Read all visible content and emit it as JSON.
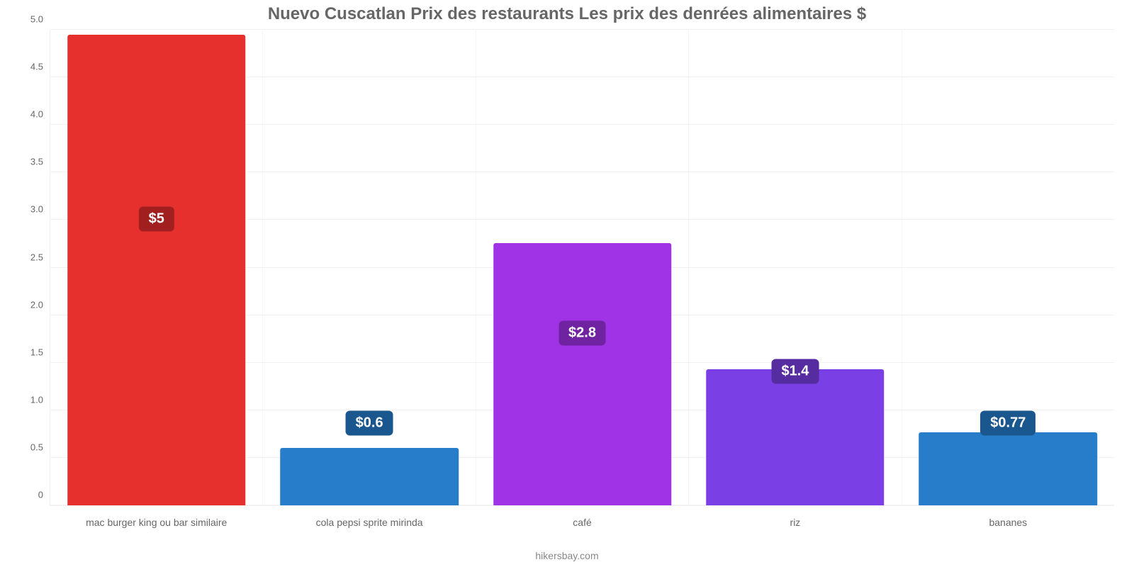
{
  "chart": {
    "type": "bar",
    "title": "Nuevo Cuscatlan Prix des restaurants Les prix des denrées alimentaires $",
    "title_fontsize": 24,
    "title_color": "#666666",
    "background_color": "#ffffff",
    "grid_color": "rgba(0,0,0,0.05)",
    "plot_border_color": "rgba(0,0,0,0.06)",
    "credit": "hikersbay.com",
    "credit_color": "#888888",
    "credit_fontsize": 14,
    "ymin": 0,
    "ymax": 5.0,
    "ytick_step": 0.5,
    "ytick_fontsize": 13,
    "ytick_color": "#666666",
    "xlabel_fontsize": 14,
    "xlabel_color": "#666666",
    "bar_width_pct": 84,
    "label_fontsize": 20,
    "label_color": "#ffffff",
    "series": [
      {
        "category": "mac burger king ou bar similaire",
        "value": 4.95,
        "display_label": "$5",
        "bar_color": "#e6302d",
        "badge_color": "#a1201f",
        "label_y": 2.75
      },
      {
        "category": "cola pepsi sprite mirinda",
        "value": 0.6,
        "display_label": "$0.6",
        "bar_color": "#287dcb",
        "badge_color": "#1a578e",
        "label_y": 0.6
      },
      {
        "category": "café",
        "value": 2.76,
        "display_label": "$2.8",
        "bar_color": "#a133e6",
        "badge_color": "#7023a1",
        "label_y": 1.55
      },
      {
        "category": "riz",
        "value": 1.43,
        "display_label": "$1.4",
        "bar_color": "#7b3fe6",
        "badge_color": "#562ca1",
        "label_y": 1.15
      },
      {
        "category": "bananes",
        "value": 0.77,
        "display_label": "$0.77",
        "bar_color": "#287dcb",
        "badge_color": "#1a578e",
        "label_y": 0.6
      }
    ]
  },
  "yticks_text": {
    "0": "0",
    "1": "0.5",
    "2": "1.0",
    "3": "1.5",
    "4": "2.0",
    "5": "2.5",
    "6": "3.0",
    "7": "3.5",
    "8": "4.0",
    "9": "4.5",
    "10": "5.0"
  }
}
